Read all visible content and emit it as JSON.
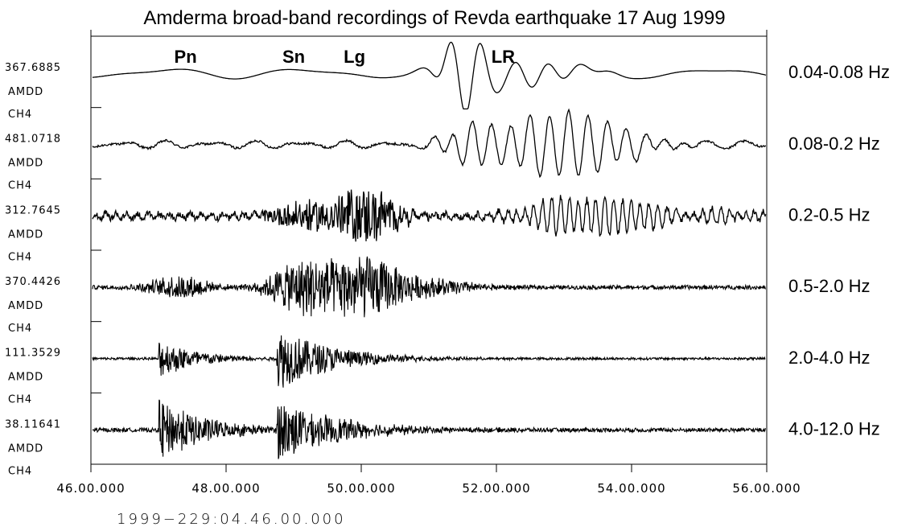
{
  "chart_data": {
    "type": "line",
    "title": "Amderma broad-band recordings of Revda earthquake 17 Aug 1999",
    "x_origin_label": "1999−229:04.46.00.000",
    "x_ticks": [
      "46.00.000",
      "48.00.000",
      "50.00.000",
      "52.00.000",
      "54.00.000",
      "56.00.000"
    ],
    "xlim": [
      46,
      56
    ],
    "phase_labels": [
      {
        "text": "Pn",
        "x": 47.4
      },
      {
        "text": "Sn",
        "x": 49.0
      },
      {
        "text": "Lg",
        "x": 49.9
      },
      {
        "text": "LR",
        "x": 52.1
      }
    ],
    "series": [
      {
        "amplitude": "367.6885",
        "station": "AMDD",
        "channel": "CH4",
        "band": "0.04-0.08 Hz"
      },
      {
        "amplitude": "481.0718",
        "station": "AMDD",
        "channel": "CH4",
        "band": "0.08-0.2 Hz"
      },
      {
        "amplitude": "312.7645",
        "station": "AMDD",
        "channel": "CH4",
        "band": "0.2-0.5 Hz"
      },
      {
        "amplitude": "370.4426",
        "station": "AMDD",
        "channel": "CH4",
        "band": "0.5-2.0 Hz"
      },
      {
        "amplitude": "111.3529",
        "station": "AMDD",
        "channel": "CH4",
        "band": "2.0-4.0 Hz"
      },
      {
        "amplitude": "38.11641",
        "station": "AMDD",
        "channel": "CH4",
        "band": "4.0-12.0 Hz"
      }
    ]
  }
}
